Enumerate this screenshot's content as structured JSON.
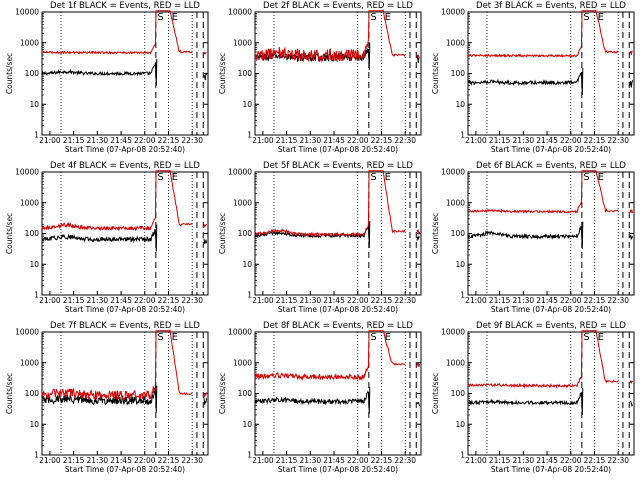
{
  "chart_data": [
    {
      "type": "line",
      "title": "Det 1f BLACK = Events, RED = LLD",
      "xlabel": "Start Time (07-Apr-08 20:52:40)",
      "ylabel": "Counts/sec",
      "x_ticks": [
        "21:00",
        "21:15",
        "21:30",
        "21:45",
        "22:00",
        "22:15",
        "22:30"
      ],
      "y_ticks": [
        "1",
        "10",
        "100",
        "1000",
        "10000"
      ],
      "ylim": [
        1,
        10000
      ],
      "y_scale": "log",
      "markers": [
        "S",
        "E"
      ],
      "series": [
        {
          "color": "#000000",
          "base": 100,
          "bump": 1.15,
          "noise": 0.05,
          "drop_min": 1
        },
        {
          "color": "#d40000",
          "base": 480,
          "bump": 1.0,
          "noise": 0.03,
          "drop_min": 500
        }
      ]
    },
    {
      "type": "line",
      "title": "Det 2f BLACK = Events, RED = LLD",
      "xlabel": "Start Time (07-Apr-08 20:52:40)",
      "ylabel": "Counts/sec",
      "x_ticks": [
        "21:00",
        "21:15",
        "21:30",
        "21:45",
        "22:00",
        "22:15",
        "22:30"
      ],
      "y_ticks": [
        "1",
        "10",
        "100",
        "1000",
        "10000"
      ],
      "ylim": [
        1,
        10000
      ],
      "y_scale": "log",
      "markers": [
        "S",
        "E"
      ],
      "series": [
        {
          "color": "#000000",
          "base": 330,
          "bump": 1.1,
          "noise": 0.12,
          "drop_min": 1
        },
        {
          "color": "#d40000",
          "base": 390,
          "bump": 1.2,
          "noise": 0.2,
          "drop_min": 400
        }
      ]
    },
    {
      "type": "line",
      "title": "Det 3f BLACK = Events, RED = LLD",
      "xlabel": "Start Time (07-Apr-08 20:52:40)",
      "ylabel": "Counts/sec",
      "x_ticks": [
        "21:00",
        "21:15",
        "21:30",
        "21:45",
        "22:00",
        "22:15",
        "22:30"
      ],
      "y_ticks": [
        "1",
        "10",
        "100",
        "1000",
        "10000"
      ],
      "ylim": [
        1,
        10000
      ],
      "y_scale": "log",
      "markers": [
        "S",
        "E"
      ],
      "series": [
        {
          "color": "#000000",
          "base": 50,
          "bump": 1.1,
          "noise": 0.06,
          "drop_min": 1
        },
        {
          "color": "#d40000",
          "base": 380,
          "bump": 1.0,
          "noise": 0.03,
          "drop_min": 500
        }
      ]
    },
    {
      "type": "line",
      "title": "Det 4f BLACK = Events, RED = LLD",
      "xlabel": "Start Time (07-Apr-08 20:52:40)",
      "ylabel": "Counts/sec",
      "x_ticks": [
        "21:00",
        "21:15",
        "21:30",
        "21:45",
        "22:00",
        "22:15",
        "22:30"
      ],
      "y_ticks": [
        "1",
        "10",
        "100",
        "1000",
        "10000"
      ],
      "ylim": [
        1,
        10000
      ],
      "y_scale": "log",
      "markers": [
        "S",
        "E"
      ],
      "series": [
        {
          "color": "#000000",
          "base": 65,
          "bump": 1.2,
          "noise": 0.07,
          "drop_min": 1
        },
        {
          "color": "#d40000",
          "base": 150,
          "bump": 1.25,
          "noise": 0.06,
          "drop_min": 200
        }
      ]
    },
    {
      "type": "line",
      "title": "Det 5f BLACK = Events, RED = LLD",
      "xlabel": "Start Time (07-Apr-08 20:52:40)",
      "ylabel": "Counts/sec",
      "x_ticks": [
        "21:00",
        "21:15",
        "21:30",
        "21:45",
        "22:00",
        "22:15",
        "22:30"
      ],
      "y_ticks": [
        "1",
        "10",
        "100",
        "1000",
        "10000"
      ],
      "ylim": [
        1,
        10000
      ],
      "y_scale": "log",
      "markers": [
        "S",
        "E"
      ],
      "series": [
        {
          "color": "#000000",
          "base": 85,
          "bump": 1.25,
          "noise": 0.05,
          "drop_min": 1
        },
        {
          "color": "#d40000",
          "base": 95,
          "bump": 1.3,
          "noise": 0.04,
          "drop_min": 120
        }
      ]
    },
    {
      "type": "line",
      "title": "Det 6f BLACK = Events, RED = LLD",
      "xlabel": "Start Time (07-Apr-08 20:52:40)",
      "ylabel": "Counts/sec",
      "x_ticks": [
        "21:00",
        "21:15",
        "21:30",
        "21:45",
        "22:00",
        "22:15",
        "22:30"
      ],
      "y_ticks": [
        "1",
        "10",
        "100",
        "1000",
        "10000"
      ],
      "ylim": [
        1,
        10000
      ],
      "y_scale": "log",
      "markers": [
        "S",
        "E"
      ],
      "series": [
        {
          "color": "#000000",
          "base": 80,
          "bump": 1.3,
          "noise": 0.06,
          "drop_min": 1
        },
        {
          "color": "#d40000",
          "base": 520,
          "bump": 1.05,
          "noise": 0.03,
          "drop_min": 550
        }
      ]
    },
    {
      "type": "line",
      "title": "Det 7f BLACK = Events, RED = LLD",
      "xlabel": "Start Time (07-Apr-08 20:52:40)",
      "ylabel": "Counts/sec",
      "x_ticks": [
        "21:00",
        "21:15",
        "21:30",
        "21:45",
        "22:00",
        "22:15",
        "22:30"
      ],
      "y_ticks": [
        "1",
        "10",
        "100",
        "1000",
        "10000"
      ],
      "ylim": [
        1,
        10000
      ],
      "y_scale": "log",
      "markers": [
        "S",
        "E"
      ],
      "series": [
        {
          "color": "#000000",
          "base": 60,
          "bump": 1.15,
          "noise": 0.14,
          "drop_min": 1
        },
        {
          "color": "#d40000",
          "base": 90,
          "bump": 1.2,
          "noise": 0.14,
          "drop_min": 100
        }
      ]
    },
    {
      "type": "line",
      "title": "Det 8f BLACK = Events, RED = LLD",
      "xlabel": "Start Time (07-Apr-08 20:52:40)",
      "ylabel": "Counts/sec",
      "x_ticks": [
        "21:00",
        "21:15",
        "21:30",
        "21:45",
        "22:00",
        "22:15",
        "22:30"
      ],
      "y_ticks": [
        "1",
        "10",
        "100",
        "1000",
        "10000"
      ],
      "ylim": [
        1,
        10000
      ],
      "y_scale": "log",
      "markers": [
        "S",
        "E"
      ],
      "series": [
        {
          "color": "#000000",
          "base": 55,
          "bump": 1.15,
          "noise": 0.08,
          "drop_min": 1
        },
        {
          "color": "#d40000",
          "base": 350,
          "bump": 1.1,
          "noise": 0.08,
          "drop_min": 900
        }
      ]
    },
    {
      "type": "line",
      "title": "Det 9f BLACK = Events, RED = LLD",
      "xlabel": "Start Time (07-Apr-08 20:52:40)",
      "ylabel": "Counts/sec",
      "x_ticks": [
        "21:00",
        "21:15",
        "21:30",
        "21:45",
        "22:00",
        "22:15",
        "22:30"
      ],
      "y_ticks": [
        "1",
        "10",
        "100",
        "1000",
        "10000"
      ],
      "ylim": [
        1,
        10000
      ],
      "y_scale": "log",
      "markers": [
        "S",
        "E"
      ],
      "series": [
        {
          "color": "#000000",
          "base": 50,
          "bump": 1.1,
          "noise": 0.05,
          "drop_min": 1
        },
        {
          "color": "#d40000",
          "base": 180,
          "bump": 1.05,
          "noise": 0.04,
          "drop_min": 250
        }
      ]
    }
  ]
}
